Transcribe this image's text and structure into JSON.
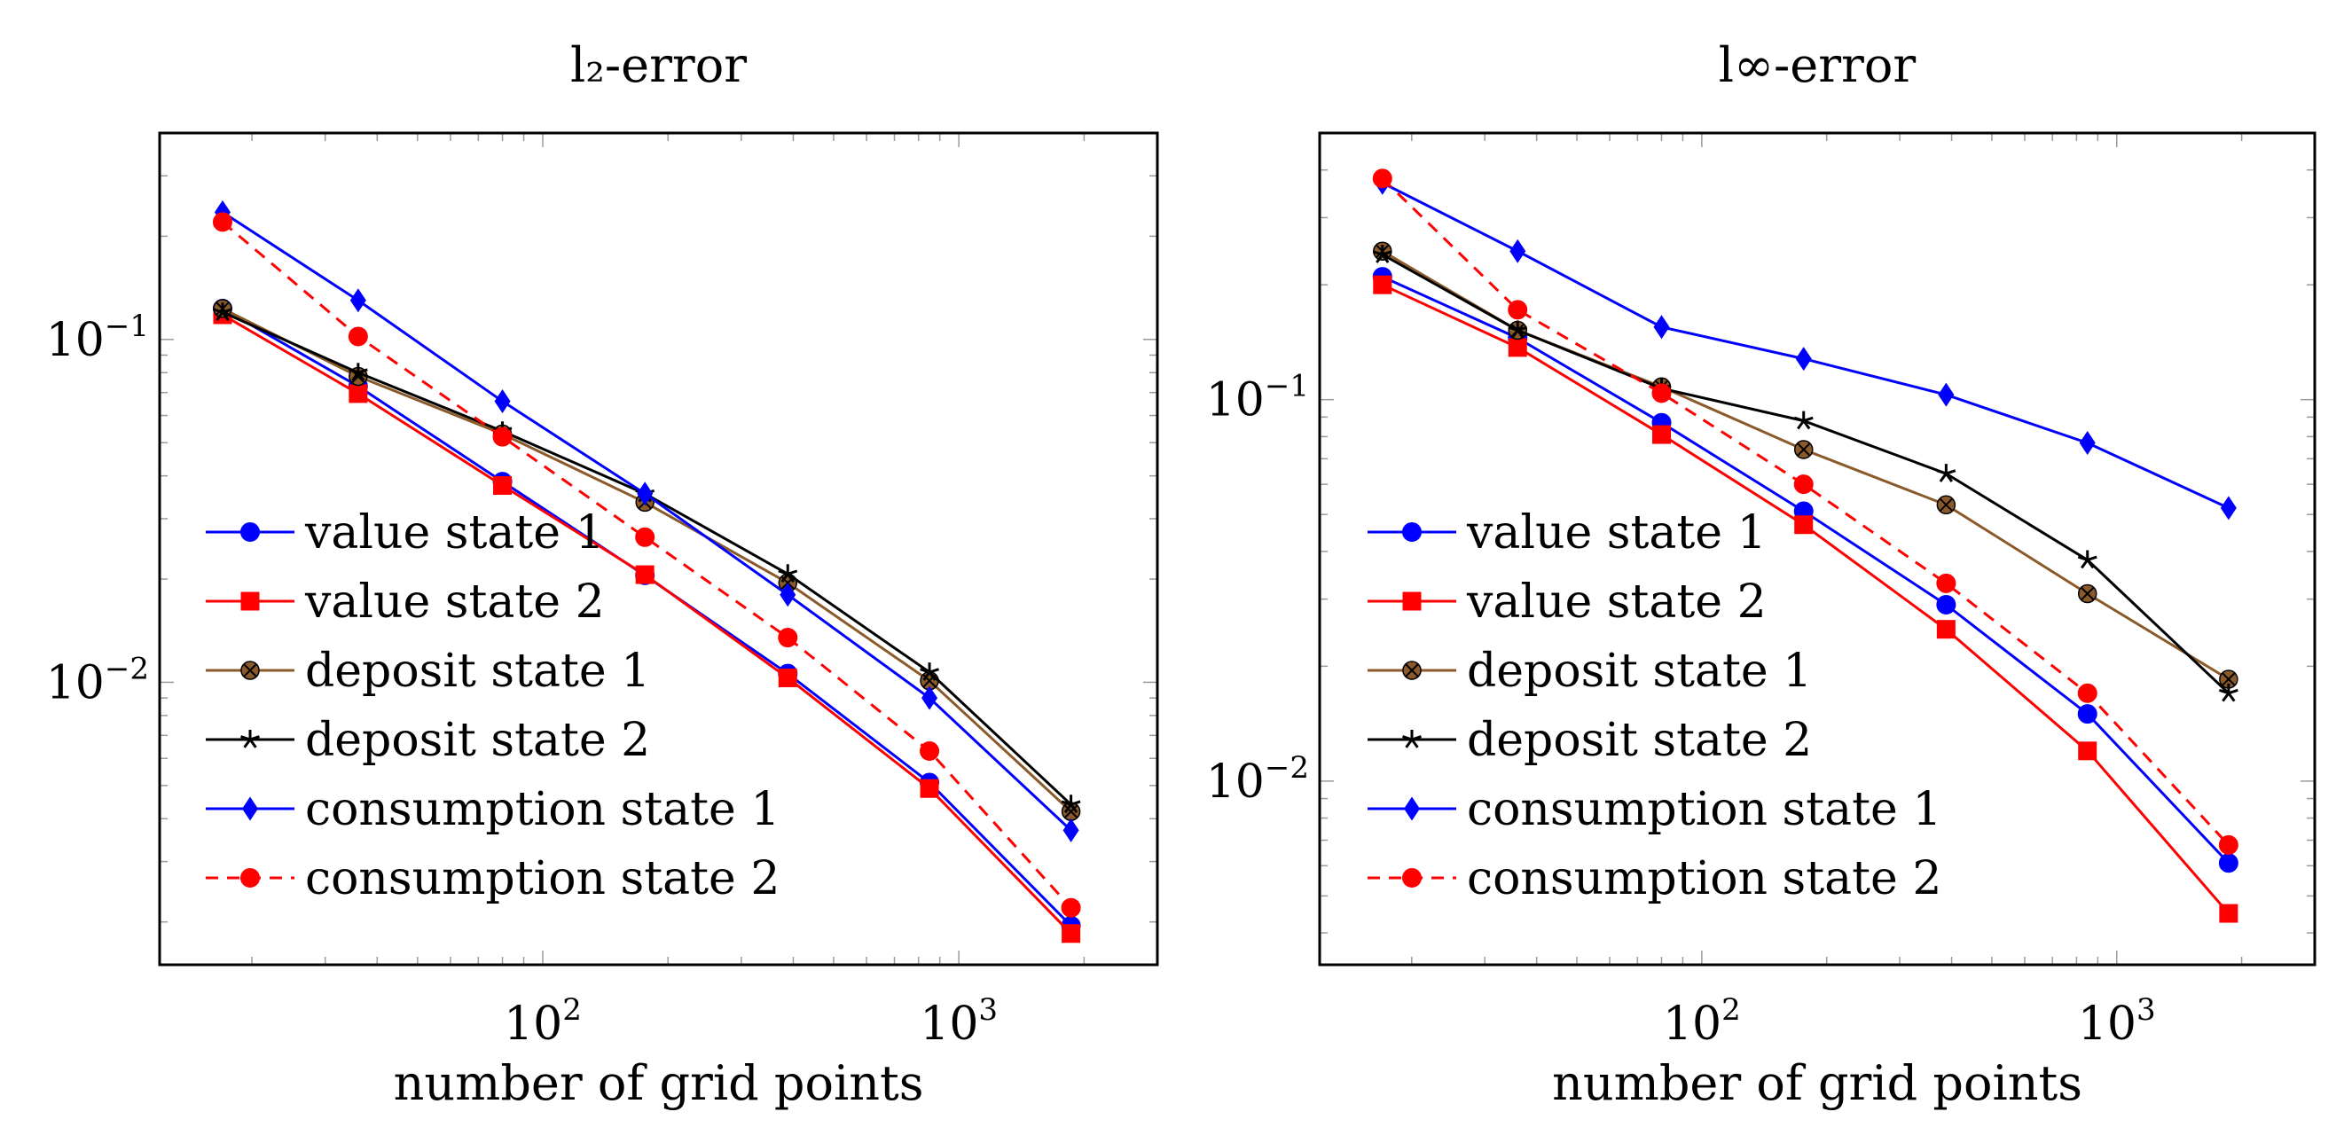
{
  "chart_data": [
    {
      "type": "line",
      "title": "l₂-error",
      "xlabel": "number of grid points",
      "ylabel": "",
      "xscale": "log",
      "yscale": "log",
      "xlim": [
        12,
        3000
      ],
      "ylim": [
        0.0015,
        0.4
      ],
      "grid": false,
      "legend_location": "lower-left",
      "x_ticks": [
        {
          "base": "10",
          "exp": "2",
          "value": 100
        },
        {
          "base": "10",
          "exp": "3",
          "value": 1000
        }
      ],
      "y_ticks": [
        {
          "base": "10",
          "exp": "−2",
          "value": 0.01
        },
        {
          "base": "10",
          "exp": "−1",
          "value": 0.1
        }
      ],
      "x": [
        17,
        36,
        80,
        176,
        388,
        850,
        1860
      ],
      "series": [
        {
          "name": "value state 1",
          "color": "#0000ff",
          "marker": "circle",
          "dash": "solid",
          "values": [
            0.123,
            0.073,
            0.0385,
            0.0205,
            0.0106,
            0.0051,
            0.00195
          ]
        },
        {
          "name": "value state 2",
          "color": "#ff0000",
          "marker": "square",
          "dash": "solid",
          "values": [
            0.118,
            0.0695,
            0.0375,
            0.0206,
            0.0103,
            0.0049,
            0.00185
          ]
        },
        {
          "name": "deposit state 1",
          "color": "#8b5a2b",
          "marker": "circle-x",
          "dash": "solid",
          "values": [
            0.123,
            0.078,
            0.053,
            0.0335,
            0.0195,
            0.0101,
            0.0042
          ]
        },
        {
          "name": "deposit state 2",
          "color": "#000000",
          "marker": "star",
          "dash": "solid",
          "values": [
            0.12,
            0.08,
            0.054,
            0.0355,
            0.0207,
            0.0107,
            0.0044
          ]
        },
        {
          "name": "consumption state 1",
          "color": "#0000ff",
          "marker": "diamond",
          "dash": "solid",
          "values": [
            0.235,
            0.13,
            0.066,
            0.0355,
            0.018,
            0.009,
            0.0037
          ]
        },
        {
          "name": "consumption state 2",
          "color": "#ff0000",
          "marker": "circle",
          "dash": "dashed",
          "values": [
            0.22,
            0.102,
            0.052,
            0.0265,
            0.0135,
            0.0063,
            0.0022
          ]
        }
      ]
    },
    {
      "type": "line",
      "title": "l∞-error",
      "xlabel": "number of grid points",
      "ylabel": "",
      "xscale": "log",
      "yscale": "log",
      "xlim": [
        12,
        3000
      ],
      "ylim": [
        0.0033,
        0.5
      ],
      "grid": false,
      "legend_location": "lower-left",
      "x_ticks": [
        {
          "base": "10",
          "exp": "2",
          "value": 100
        },
        {
          "base": "10",
          "exp": "3",
          "value": 1000
        }
      ],
      "y_ticks": [
        {
          "base": "10",
          "exp": "−2",
          "value": 0.01
        },
        {
          "base": "10",
          "exp": "−1",
          "value": 0.1
        }
      ],
      "x": [
        17,
        36,
        80,
        176,
        388,
        850,
        1860
      ],
      "series": [
        {
          "name": "value state 1",
          "color": "#0000ff",
          "marker": "circle",
          "dash": "solid",
          "values": [
            0.21,
            0.145,
            0.087,
            0.051,
            0.029,
            0.015,
            0.0061
          ]
        },
        {
          "name": "value state 2",
          "color": "#ff0000",
          "marker": "square",
          "dash": "solid",
          "values": [
            0.2,
            0.137,
            0.081,
            0.047,
            0.025,
            0.012,
            0.0045
          ]
        },
        {
          "name": "deposit state 1",
          "color": "#8b5a2b",
          "marker": "circle-x",
          "dash": "solid",
          "values": [
            0.245,
            0.152,
            0.108,
            0.074,
            0.053,
            0.031,
            0.0185
          ]
        },
        {
          "name": "deposit state 2",
          "color": "#000000",
          "marker": "star",
          "dash": "solid",
          "values": [
            0.24,
            0.152,
            0.107,
            0.088,
            0.064,
            0.038,
            0.017
          ]
        },
        {
          "name": "consumption state 1",
          "color": "#0000ff",
          "marker": "diamond",
          "dash": "solid",
          "values": [
            0.37,
            0.245,
            0.155,
            0.128,
            0.103,
            0.077,
            0.052
          ]
        },
        {
          "name": "consumption state 2",
          "color": "#ff0000",
          "marker": "circle",
          "dash": "dashed",
          "values": [
            0.38,
            0.172,
            0.104,
            0.06,
            0.033,
            0.017,
            0.0068
          ]
        }
      ]
    }
  ]
}
